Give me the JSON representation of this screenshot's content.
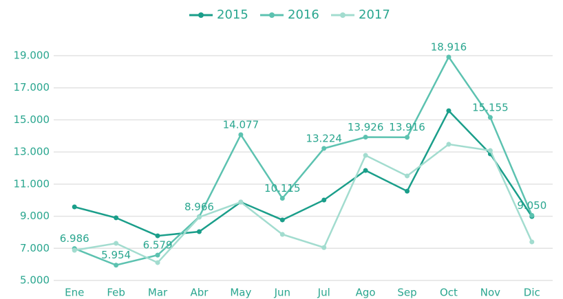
{
  "chart_data": {
    "type": "line",
    "categories": [
      "Ene",
      "Feb",
      "Mar",
      "Abr",
      "May",
      "Jun",
      "Jul",
      "Ago",
      "Sep",
      "Oct",
      "Nov",
      "Dic"
    ],
    "series": [
      {
        "name": "2015",
        "color": "#1a9e8a",
        "values": [
          9580,
          8900,
          7780,
          8040,
          9880,
          8770,
          10010,
          11850,
          10560,
          15570,
          12880,
          8980
        ]
      },
      {
        "name": "2016",
        "color": "#5cc2b0",
        "values": [
          6986,
          5954,
          6579,
          8966,
          14077,
          10115,
          13224,
          13926,
          13916,
          18916,
          15155,
          9050
        ],
        "value_labels": [
          "6.986",
          "5.954",
          "6.579",
          "8.966",
          "14.077",
          "10.115",
          "13.224",
          "13.926",
          "13.916",
          "18.916",
          "15.155",
          "9.050"
        ]
      },
      {
        "name": "2017",
        "color": "#a2dccf",
        "values": [
          6880,
          7310,
          6110,
          8940,
          9880,
          7870,
          7050,
          12790,
          11510,
          13480,
          13090,
          7400
        ]
      }
    ],
    "ylim": [
      5000,
      19000
    ],
    "yticks": [
      {
        "value": 5000,
        "label": "5.000"
      },
      {
        "value": 7000,
        "label": "7.000"
      },
      {
        "value": 9000,
        "label": "9.000"
      },
      {
        "value": 11000,
        "label": "11.000"
      },
      {
        "value": 13000,
        "label": "13.000"
      },
      {
        "value": 15000,
        "label": "15.000"
      },
      {
        "value": 17000,
        "label": "17.000"
      },
      {
        "value": 19000,
        "label": "19.000"
      }
    ],
    "grid": true,
    "legend": "top"
  }
}
